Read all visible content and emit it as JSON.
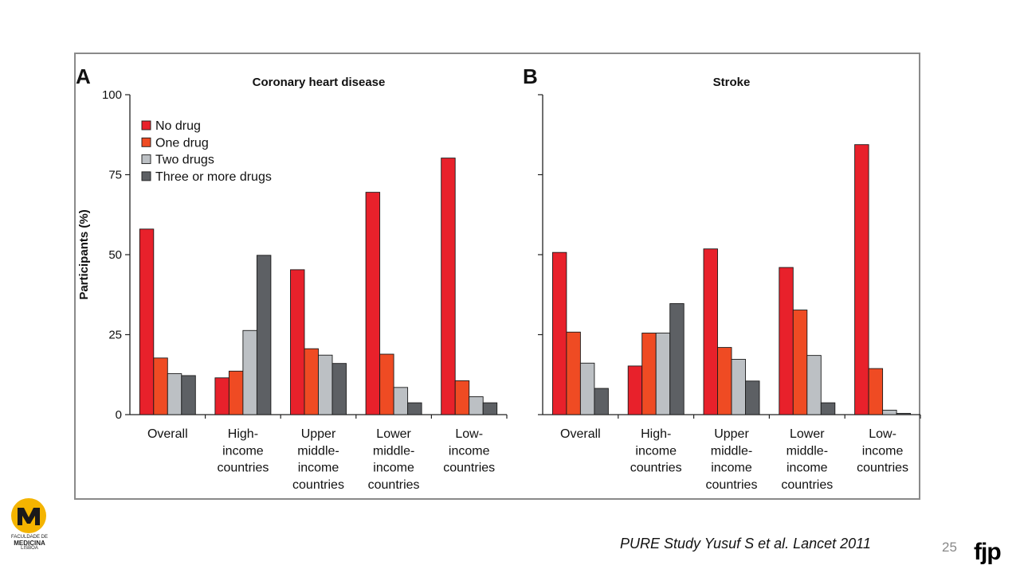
{
  "slide": {
    "citation": "PURE Study Yusuf S et al. Lancet 2011",
    "page_number": "25",
    "brand": "fjp",
    "logo": {
      "line1": "FACULDADE DE",
      "line2": "MEDICINA",
      "line3": "LISBOA"
    }
  },
  "colors": {
    "series": [
      "#e8212b",
      "#ef4b23",
      "#bcc0c4",
      "#5d6064"
    ],
    "axis": "#222222",
    "logo_yellow": "#f4b400"
  },
  "chart_data": [
    {
      "type": "bar",
      "panel": "A",
      "title": "Coronary heart disease",
      "ylabel": "Participants (%)",
      "ylim": [
        0,
        100
      ],
      "yticks": [
        "0",
        "25",
        "50",
        "75",
        "100"
      ],
      "categories": [
        [
          "Overall"
        ],
        [
          "High-",
          "income",
          "countries"
        ],
        [
          "Upper",
          "middle-",
          "income",
          "countries"
        ],
        [
          "Lower",
          "middle-",
          "income",
          "countries"
        ],
        [
          "Low-",
          "income",
          "countries"
        ]
      ],
      "legend_position": "top-left",
      "series": [
        {
          "name": "No drug",
          "values": [
            58,
            11.5,
            45.3,
            69.5,
            80.2
          ]
        },
        {
          "name": "One drug",
          "values": [
            17.7,
            13.6,
            20.6,
            18.9,
            10.6
          ]
        },
        {
          "name": "Two drugs",
          "values": [
            12.8,
            26.3,
            18.6,
            8.5,
            5.6
          ]
        },
        {
          "name": "Three or more drugs",
          "values": [
            12.2,
            49.8,
            16.0,
            3.7,
            3.7
          ]
        }
      ]
    },
    {
      "type": "bar",
      "panel": "B",
      "title": "Stroke",
      "ylim": [
        0,
        100
      ],
      "categories": [
        [
          "Overall"
        ],
        [
          "High-",
          "income",
          "countries"
        ],
        [
          "Upper",
          "middle-",
          "income",
          "countries"
        ],
        [
          "Lower",
          "middle-",
          "income",
          "countries"
        ],
        [
          "Low-",
          "income",
          "countries"
        ]
      ],
      "series": [
        {
          "name": "No drug",
          "values": [
            50.7,
            15.2,
            51.8,
            46.0,
            84.4
          ]
        },
        {
          "name": "One drug",
          "values": [
            25.8,
            25.5,
            21.0,
            32.7,
            14.4
          ]
        },
        {
          "name": "Two drugs",
          "values": [
            16.1,
            25.5,
            17.3,
            18.5,
            1.4
          ]
        },
        {
          "name": "Three or more drugs",
          "values": [
            8.2,
            34.7,
            10.5,
            3.7,
            0.4
          ]
        }
      ]
    }
  ]
}
